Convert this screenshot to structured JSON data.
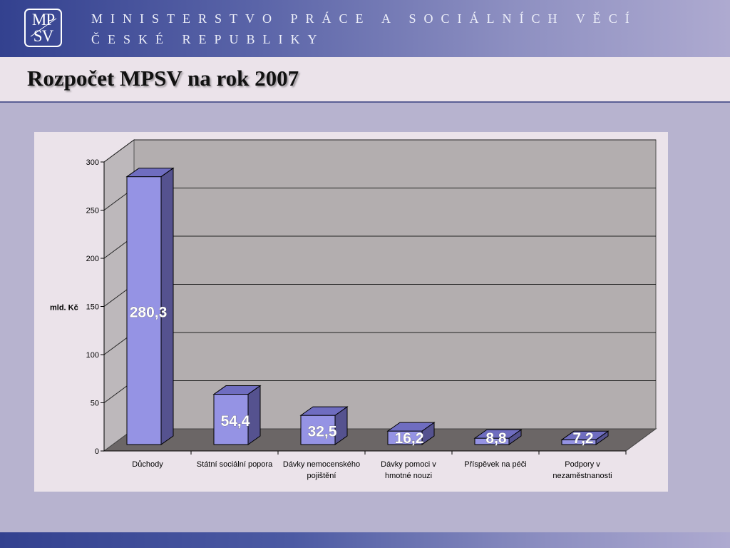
{
  "header": {
    "logo": {
      "line1": "MP",
      "line2": "SV"
    },
    "ministry_line_1": "MINISTERSTVO PRÁCE A SOCIÁLNÍCH VĚCÍ",
    "ministry_line_2": "ČESKÉ REPUBLIKY"
  },
  "title": "Rozpočet MPSV na rok 2007",
  "colors": {
    "bar_front": "#9593e4",
    "bar_side": "#55528f",
    "bar_top": "#6f6dc0",
    "plot_wall": "#b3aeaf",
    "plot_floor": "#6b6666",
    "data_label": "#ffffff"
  },
  "chart_data": {
    "type": "bar",
    "style": "3d-column",
    "categories": [
      [
        "Důchody"
      ],
      [
        "Státní sociální popora"
      ],
      [
        "Dávky nemocenského",
        "pojištění"
      ],
      [
        "Dávky pomoci v",
        "hmotné nouzi"
      ],
      [
        "Příspěvek na péči"
      ],
      [
        "Podpory v",
        "nezaměstnanosti"
      ]
    ],
    "values": [
      280.3,
      54.4,
      32.5,
      16.2,
      8.8,
      7.2
    ],
    "data_labels": [
      "280,3",
      "54,4",
      "32,5",
      "16,2",
      "8,8",
      "7,2"
    ],
    "ylabel": "mld. Kč",
    "ylim": [
      0,
      300
    ],
    "yticks": [
      0,
      50,
      100,
      150,
      200,
      250,
      300
    ],
    "grid": true,
    "legend": false
  }
}
